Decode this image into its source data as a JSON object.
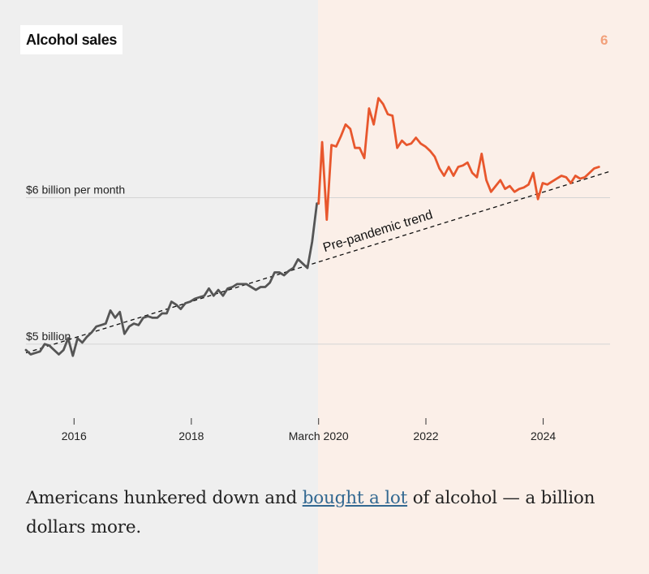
{
  "slide_number": "6",
  "caption": {
    "before": "Americans hunkered down and ",
    "link": "bought a lot",
    "after": " of alcohol — a billion dollars more."
  },
  "colors": {
    "pre": "#555555",
    "post": "#e8572d",
    "trend": "#111111",
    "post_background": "#fbefe8",
    "pre_background": "#efefef"
  },
  "chart_data": {
    "type": "line",
    "title": "Alcohol sales",
    "xlabel": "",
    "ylabel": "",
    "x_ticks": [
      {
        "x": 2016,
        "label": "2016"
      },
      {
        "x": 2018,
        "label": "2018"
      },
      {
        "x": 2020.17,
        "label": "March 2020"
      },
      {
        "x": 2022,
        "label": "2022"
      },
      {
        "x": 2024,
        "label": "2024"
      }
    ],
    "y_gridlines": [
      {
        "y": 5.0,
        "label": "$5 billion"
      },
      {
        "y": 6.0,
        "label": "$6 billion per month"
      }
    ],
    "xlim": [
      2015.18,
      2025.14
    ],
    "ylim": [
      4.55,
      6.94
    ],
    "split_x": 2020.17,
    "series": [
      {
        "x": [
          2015.18,
          2015.26,
          2015.34,
          2015.42,
          2015.5,
          2015.58,
          2015.66,
          2015.74,
          2015.82,
          2015.9,
          2015.98,
          2016.06,
          2016.14,
          2016.22,
          2016.3,
          2016.38,
          2016.46,
          2016.54,
          2016.62,
          2016.7,
          2016.78,
          2016.86,
          2016.94,
          2017.02,
          2017.1,
          2017.18,
          2017.26,
          2017.34,
          2017.42,
          2017.5,
          2017.58,
          2017.66,
          2017.74,
          2017.82,
          2017.9,
          2017.98,
          2018.06,
          2018.14,
          2018.22,
          2018.3,
          2018.38,
          2018.46,
          2018.54,
          2018.62,
          2018.7,
          2018.78,
          2018.86,
          2018.94,
          2019.02,
          2019.1,
          2019.18,
          2019.26,
          2019.34,
          2019.42,
          2019.5,
          2019.58,
          2019.66,
          2019.74,
          2019.82,
          2019.9,
          2019.98,
          2020.06,
          2020.14,
          2020.17
        ],
        "values": [
          4.96,
          4.93,
          4.94,
          4.95,
          5.0,
          4.99,
          4.96,
          4.93,
          4.96,
          5.04,
          4.92,
          5.04,
          5.01,
          5.05,
          5.08,
          5.12,
          5.13,
          5.14,
          5.23,
          5.18,
          5.22,
          5.07,
          5.12,
          5.14,
          5.13,
          5.18,
          5.19,
          5.18,
          5.18,
          5.21,
          5.21,
          5.29,
          5.27,
          5.24,
          5.28,
          5.29,
          5.31,
          5.32,
          5.33,
          5.38,
          5.33,
          5.37,
          5.33,
          5.38,
          5.39,
          5.41,
          5.41,
          5.41,
          5.39,
          5.37,
          5.39,
          5.39,
          5.42,
          5.49,
          5.49,
          5.47,
          5.5,
          5.52,
          5.58,
          5.55,
          5.52,
          5.7,
          5.96,
          5.96
        ]
      },
      {
        "x": [
          2020.17,
          2020.23,
          2020.31,
          2020.39,
          2020.47,
          2020.55,
          2020.63,
          2020.71,
          2020.79,
          2020.87,
          2020.95,
          2021.03,
          2021.11,
          2021.19,
          2021.27,
          2021.35,
          2021.43,
          2021.51,
          2021.59,
          2021.67,
          2021.75,
          2021.83,
          2021.91,
          2021.99,
          2022.07,
          2022.15,
          2022.23,
          2022.31,
          2022.39,
          2022.47,
          2022.55,
          2022.63,
          2022.71,
          2022.79,
          2022.87,
          2022.95,
          2023.03,
          2023.11,
          2023.19,
          2023.27,
          2023.35,
          2023.43,
          2023.51,
          2023.59,
          2023.67,
          2023.75,
          2023.83,
          2023.91,
          2023.99,
          2024.07,
          2024.15,
          2024.23,
          2024.31,
          2024.39,
          2024.47,
          2024.55,
          2024.63,
          2024.71,
          2024.79,
          2024.87,
          2024.95
        ],
        "values": [
          5.96,
          6.38,
          5.85,
          6.36,
          6.35,
          6.42,
          6.5,
          6.47,
          6.34,
          6.34,
          6.27,
          6.61,
          6.5,
          6.68,
          6.64,
          6.57,
          6.56,
          6.34,
          6.39,
          6.36,
          6.37,
          6.41,
          6.37,
          6.35,
          6.32,
          6.28,
          6.2,
          6.15,
          6.21,
          6.15,
          6.21,
          6.22,
          6.24,
          6.17,
          6.14,
          6.3,
          6.12,
          6.04,
          6.08,
          6.12,
          6.06,
          6.08,
          6.04,
          6.06,
          6.07,
          6.09,
          6.17,
          5.99,
          6.1,
          6.09,
          6.11,
          6.13,
          6.15,
          6.14,
          6.1,
          6.15,
          6.13,
          6.14,
          6.17,
          6.2,
          6.21
        ]
      }
    ],
    "trend": {
      "x": [
        2015.18,
        2025.14
      ],
      "y": [
        4.94,
        6.18
      ],
      "label": "Pre-pandemic trend"
    },
    "grid": true,
    "legend": "none"
  }
}
